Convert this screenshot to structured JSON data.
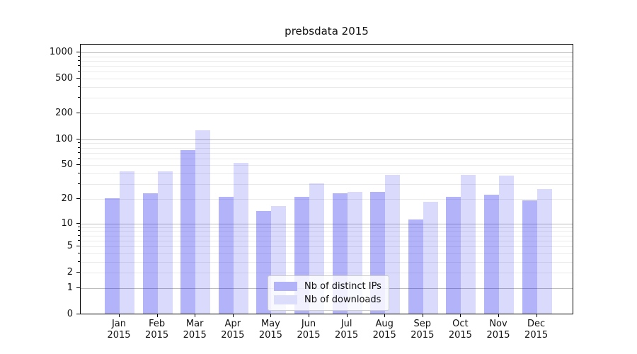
{
  "chart_data": {
    "type": "bar",
    "title": "prebsdata 2015",
    "categories": [
      "Jan 2015",
      "Feb 2015",
      "Mar 2015",
      "Apr 2015",
      "May 2015",
      "Jun 2015",
      "Jul 2015",
      "Aug 2015",
      "Sep 2015",
      "Oct 2015",
      "Nov 2015",
      "Dec 2015"
    ],
    "series": [
      {
        "name": "Nb of distinct IPs",
        "values": [
          20,
          23,
          74,
          21,
          14,
          21,
          23,
          24,
          11,
          21,
          22,
          19
        ],
        "fill": "rgba(20,20,240,0.32)",
        "legend_color": "#b2b2f8"
      },
      {
        "name": "Nb of downloads",
        "values": [
          42,
          42,
          125,
          52,
          16,
          30,
          24,
          38,
          18,
          38,
          37,
          26
        ],
        "fill": "rgba(20,20,240,0.155)",
        "legend_color": "#dcdcfb"
      }
    ],
    "xlabel": "",
    "ylabel": "",
    "yscale": "log10(1+x)",
    "ylim": [
      0,
      1253
    ],
    "yticks": [
      0,
      1,
      2,
      5,
      10,
      20,
      50,
      100,
      200,
      500,
      1000
    ],
    "grid_minor": [
      2,
      3,
      4,
      5,
      6,
      7,
      8,
      9,
      20,
      30,
      40,
      50,
      60,
      70,
      80,
      90,
      200,
      300,
      400,
      500,
      600,
      700,
      800,
      900
    ],
    "grid_major": [
      1,
      10,
      100,
      1000
    ],
    "grid": "on",
    "legend_position": "lower center"
  },
  "colors": {
    "grid_minor": "#eaeaea",
    "grid_major": "#bdbdbd",
    "spine": "#000000",
    "text": "#111111",
    "legend_bg": "rgba(255,255,255,0.8)",
    "legend_border": "#cccccc"
  }
}
